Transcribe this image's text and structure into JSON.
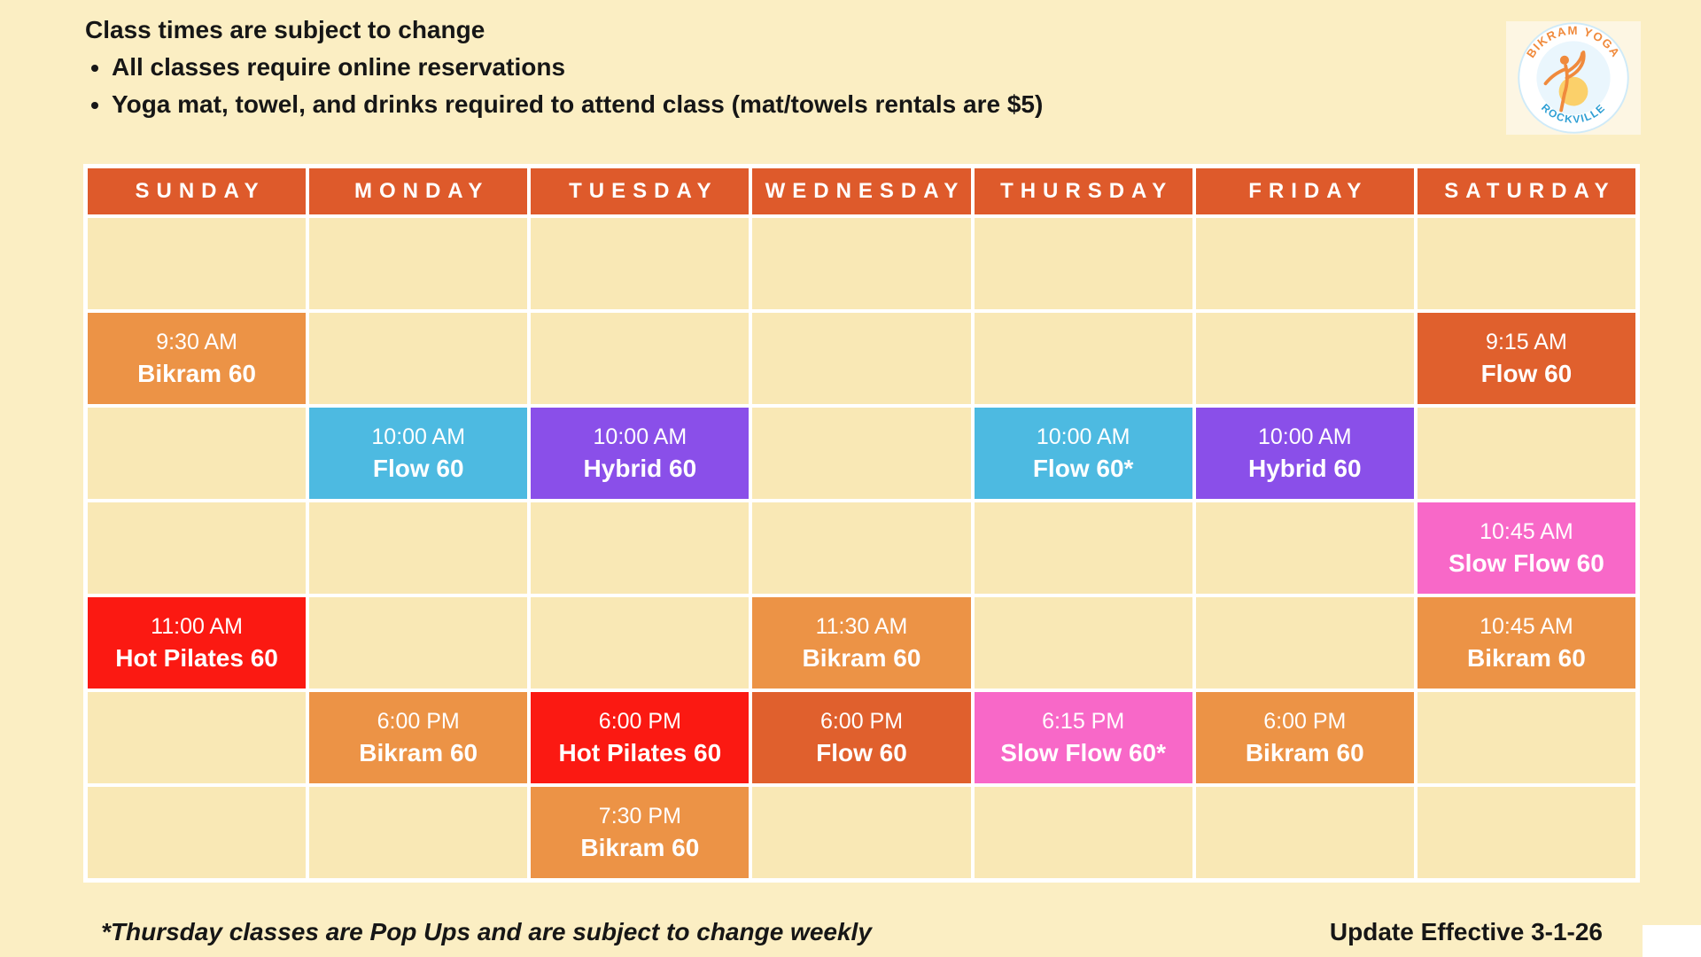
{
  "notes": {
    "title": "Class times are subject to change",
    "bullets": [
      "All classes require online reservations",
      "Yoga mat, towel, and drinks required to attend class (mat/towels rentals are $5)"
    ]
  },
  "logo": {
    "top_text": "BIKRAM YOGA",
    "bottom_text": "ROCKVILLE"
  },
  "footer": {
    "footnote": "*Thursday classes are Pop Ups and are subject to change weekly",
    "effective": "Update Effective 3-1-26"
  },
  "colors": {
    "page_bg": "#FBEEC3",
    "cell_bg": "#F9E8B5",
    "grid_line": "#FFFFFF",
    "header_bg": "#DE5A2B",
    "orange": "#EC9346",
    "dark_orange": "#E0602D",
    "blue": "#4DBAE1",
    "purple": "#8A4FE9",
    "pink": "#F868C8",
    "red": "#FB1912",
    "text_dark": "#161616",
    "text_white": "#FFFFFF",
    "logo_orange": "#F08A3C",
    "logo_blue": "#2E9FD4"
  },
  "calendar": {
    "days": [
      "SUNDAY",
      "MONDAY",
      "TUESDAY",
      "WEDNESDAY",
      "THURSDAY",
      "FRIDAY",
      "SATURDAY"
    ],
    "rows": [
      [
        null,
        null,
        null,
        null,
        null,
        null,
        null
      ],
      [
        {
          "time": "9:30 AM",
          "name": "Bikram 60",
          "color": "orange"
        },
        null,
        null,
        null,
        null,
        null,
        {
          "time": "9:15 AM",
          "name": "Flow 60",
          "color": "dark_orange"
        }
      ],
      [
        null,
        {
          "time": "10:00 AM",
          "name": "Flow 60",
          "color": "blue"
        },
        {
          "time": "10:00 AM",
          "name": "Hybrid 60",
          "color": "purple"
        },
        null,
        {
          "time": "10:00 AM",
          "name": "Flow 60*",
          "color": "blue"
        },
        {
          "time": "10:00 AM",
          "name": "Hybrid 60",
          "color": "purple"
        },
        null
      ],
      [
        null,
        null,
        null,
        null,
        null,
        null,
        {
          "time": "10:45 AM",
          "name": "Slow Flow 60",
          "color": "pink"
        }
      ],
      [
        {
          "time": "11:00 AM",
          "name": "Hot Pilates 60",
          "color": "red"
        },
        null,
        null,
        {
          "time": "11:30 AM",
          "name": "Bikram 60",
          "color": "orange"
        },
        null,
        null,
        {
          "time": "10:45 AM",
          "name": "Bikram 60",
          "color": "orange"
        }
      ],
      [
        null,
        {
          "time": "6:00 PM",
          "name": "Bikram 60",
          "color": "orange"
        },
        {
          "time": "6:00 PM",
          "name": "Hot Pilates 60",
          "color": "red"
        },
        {
          "time": "6:00 PM",
          "name": "Flow 60",
          "color": "dark_orange"
        },
        {
          "time": "6:15 PM",
          "name": "Slow Flow 60*",
          "color": "pink"
        },
        {
          "time": "6:00 PM",
          "name": "Bikram 60",
          "color": "orange"
        },
        null
      ],
      [
        null,
        null,
        {
          "time": "7:30 PM",
          "name": "Bikram 60",
          "color": "orange"
        },
        null,
        null,
        null,
        null
      ]
    ]
  }
}
